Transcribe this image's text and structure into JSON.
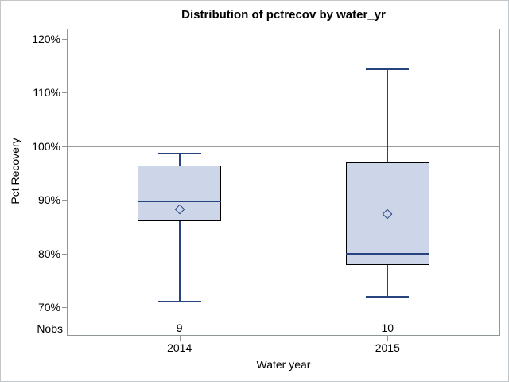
{
  "chart_data": {
    "type": "box",
    "title": "Distribution of pctrecov by water_yr",
    "xlabel": "Water year",
    "ylabel": "Pct Recovery",
    "nobs_label": "Nobs",
    "categories": [
      "2014",
      "2015"
    ],
    "yticks": [
      {
        "value": 120,
        "label": "120%"
      },
      {
        "value": 110,
        "label": "110%"
      },
      {
        "value": 100,
        "label": "100%"
      },
      {
        "value": 90,
        "label": "90%"
      },
      {
        "value": 80,
        "label": "80%"
      },
      {
        "value": 70,
        "label": "70%"
      }
    ],
    "ylim": [
      65,
      122
    ],
    "grid": "off",
    "legend": "none",
    "reference_line": 100,
    "series": [
      {
        "category": "2014",
        "nobs": "9",
        "min": 71.1,
        "q1": 86.0,
        "median": 89.8,
        "q3": 96.4,
        "max": 98.7,
        "mean": 88.3
      },
      {
        "category": "2015",
        "nobs": "10",
        "min": 71.9,
        "q1": 77.8,
        "median": 80.0,
        "q3": 97.0,
        "max": 114.4,
        "mean": 87.3
      }
    ],
    "colors": {
      "box_fill": "#ccd6e8",
      "box_border": "#000000",
      "whisker": "#26437e",
      "median_line": "#26437e",
      "mean_marker": "#26437e",
      "reference_line": "#9b9b9b",
      "frame_border": "#8f9698",
      "outer_border": "#c3c6c8",
      "text": "#000000"
    }
  }
}
